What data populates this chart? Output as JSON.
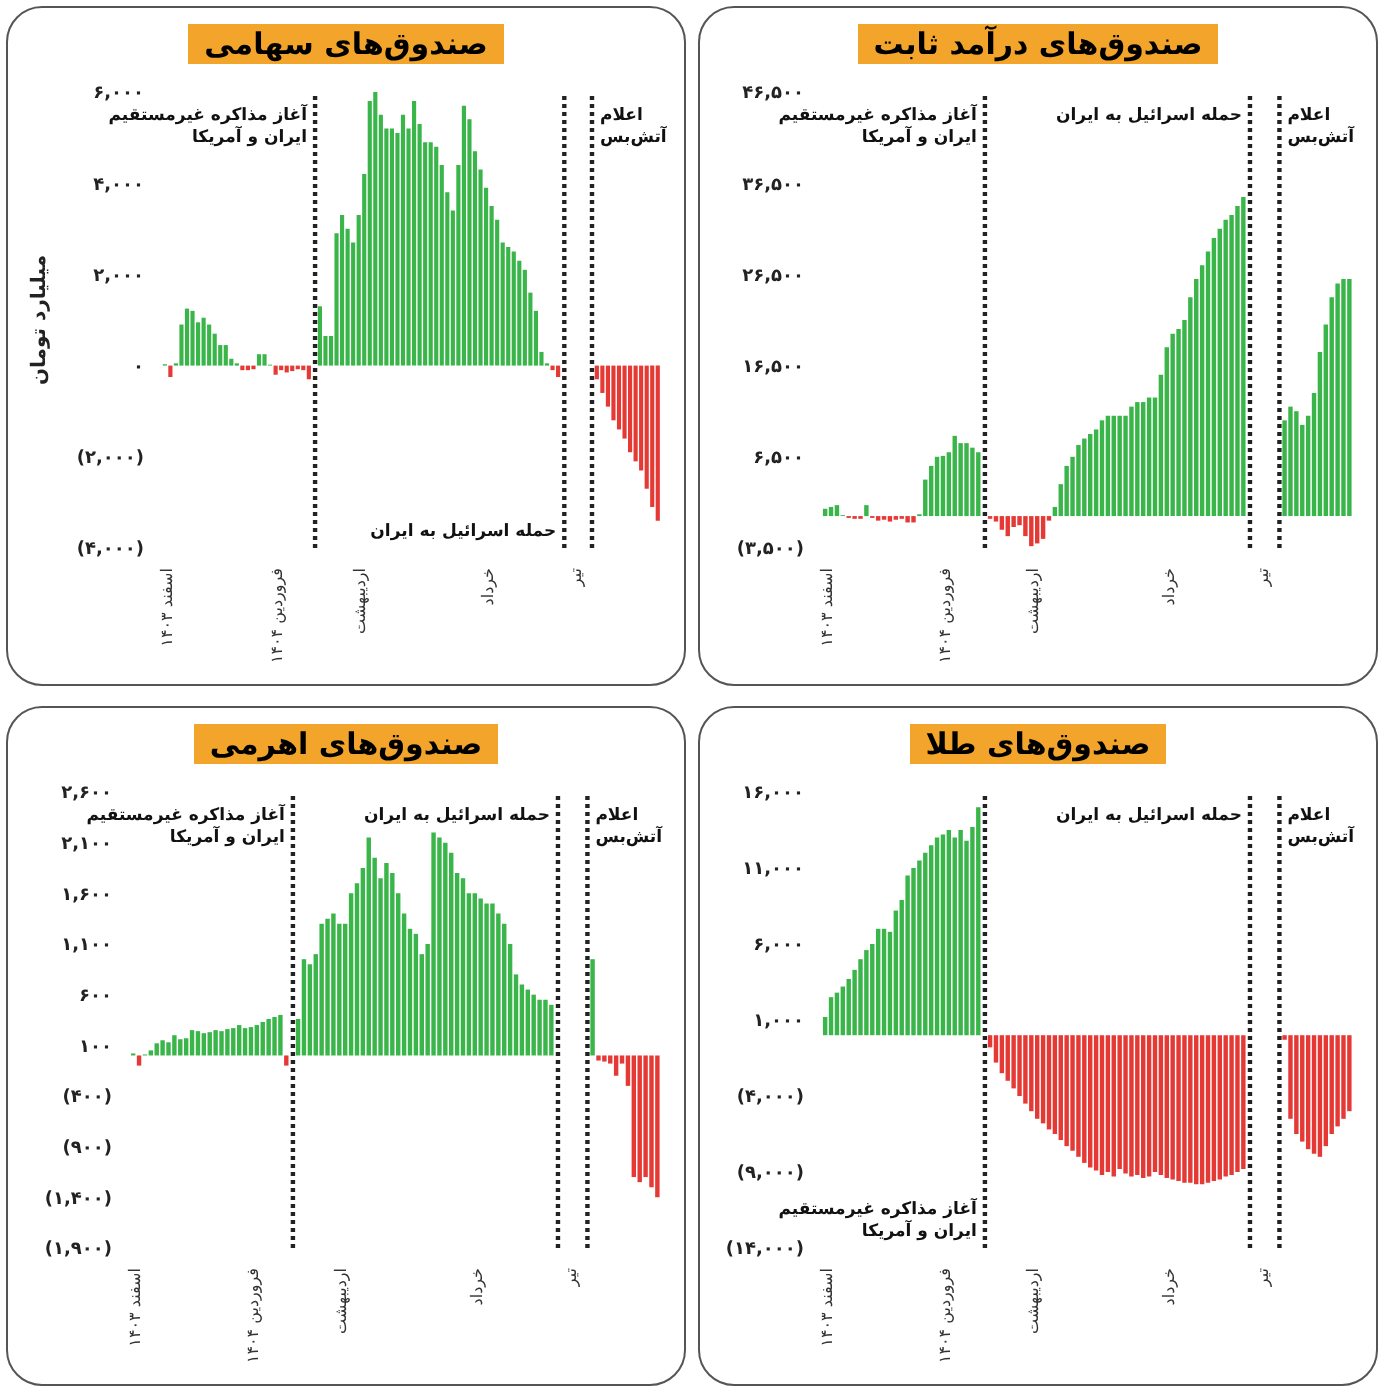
{
  "chart_data": [
    {
      "type": "bar",
      "title": "صندوق‌های سهامی",
      "ylabel": "میلیارد تومان",
      "categories": [
        "اسفند ۱۴۰۳",
        null,
        null,
        null,
        null,
        null,
        null,
        null,
        null,
        null,
        null,
        null,
        null,
        null,
        null,
        null,
        null,
        null,
        null,
        null,
        "فروردین ۱۴۰۴",
        null,
        null,
        null,
        null,
        null,
        null,
        null,
        null,
        null,
        null,
        null,
        null,
        null,
        null,
        "اردیبهشت",
        null,
        null,
        null,
        null,
        null,
        null,
        null,
        null,
        null,
        null,
        null,
        null,
        null,
        null,
        null,
        null,
        null,
        null,
        null,
        null,
        null,
        null,
        "خرداد",
        null,
        null,
        null,
        null,
        null,
        null,
        null,
        null,
        null,
        null,
        null,
        null,
        null,
        null,
        null,
        "تیر",
        null,
        null,
        null,
        null,
        null,
        null,
        null,
        null,
        null,
        null,
        null,
        null,
        null,
        null,
        null
      ],
      "values": [
        30,
        -250,
        50,
        900,
        1250,
        1200,
        950,
        1050,
        900,
        700,
        450,
        450,
        150,
        50,
        -100,
        -100,
        -80,
        250,
        250,
        20,
        -200,
        -100,
        -150,
        -120,
        -80,
        -100,
        -300,
        null,
        1300,
        650,
        650,
        2900,
        3300,
        3000,
        2700,
        3300,
        4200,
        5800,
        6000,
        5500,
        5200,
        5200,
        5100,
        5500,
        5200,
        5800,
        5300,
        4900,
        4900,
        4800,
        4400,
        3800,
        3400,
        4400,
        5700,
        5400,
        4700,
        4300,
        3900,
        3500,
        3200,
        2700,
        2600,
        2500,
        2300,
        2100,
        1600,
        1200,
        300,
        50,
        -100,
        -250,
        null,
        null,
        null,
        null,
        null,
        null,
        -300,
        -600,
        -900,
        -1200,
        -1400,
        -1600,
        -1900,
        -2100,
        -2300,
        -2700,
        -3100,
        -3400
      ],
      "colors": [
        "#3ab54a",
        "#e53935",
        "#3ab54a",
        "#3ab54a",
        "#3ab54a",
        "#3ab54a",
        "#3ab54a",
        "#3ab54a",
        "#3ab54a",
        "#3ab54a",
        "#3ab54a",
        "#3ab54a",
        "#3ab54a",
        "#3ab54a",
        "#e53935",
        "#e53935",
        "#e53935",
        "#3ab54a",
        "#3ab54a",
        "#3ab54a",
        "#e53935",
        "#e53935",
        "#e53935",
        "#e53935",
        "#e53935",
        "#e53935",
        "#e53935",
        null,
        "#3ab54a",
        "#3ab54a",
        "#3ab54a",
        "#3ab54a",
        "#3ab54a",
        "#3ab54a",
        "#3ab54a",
        "#3ab54a",
        "#3ab54a",
        "#3ab54a",
        "#3ab54a",
        "#3ab54a",
        "#3ab54a",
        "#3ab54a",
        "#3ab54a",
        "#3ab54a",
        "#3ab54a",
        "#3ab54a",
        "#3ab54a",
        "#3ab54a",
        "#3ab54a",
        "#3ab54a",
        "#3ab54a",
        "#3ab54a",
        "#3ab54a",
        "#3ab54a",
        "#3ab54a",
        "#3ab54a",
        "#3ab54a",
        "#3ab54a",
        "#3ab54a",
        "#3ab54a",
        "#3ab54a",
        "#3ab54a",
        "#3ab54a",
        "#3ab54a",
        "#3ab54a",
        "#3ab54a",
        "#3ab54a",
        "#3ab54a",
        "#3ab54a",
        "#3ab54a",
        "#e53935",
        "#e53935",
        null,
        null,
        null,
        null,
        null,
        null,
        "#e53935",
        "#e53935",
        "#e53935",
        "#e53935",
        "#e53935",
        "#e53935",
        "#e53935",
        "#e53935",
        "#e53935",
        "#e53935",
        "#e53935",
        "#e53935"
      ],
      "ylim": [
        -4000,
        6000
      ],
      "yticks": [
        {
          "value": -4000,
          "label": "(۴,۰۰۰)"
        },
        {
          "value": -2000,
          "label": "(۲,۰۰۰)"
        },
        {
          "value": 0,
          "label": "۰"
        },
        {
          "value": 2000,
          "label": "۲,۰۰۰"
        },
        {
          "value": 4000,
          "label": "۴,۰۰۰"
        },
        {
          "value": 6000,
          "label": "۶,۰۰۰"
        }
      ],
      "annotations": [
        "آغاز مذاکره غیرمستقیم ایران و آمریکا",
        "حمله اسرائیل به ایران",
        "اعلام آتش‌بس"
      ]
    },
    {
      "type": "bar",
      "title": "صندوق‌های درآمد ثابت",
      "categories": [
        "اسفند ۱۴۰۳",
        null,
        null,
        null,
        null,
        null,
        null,
        null,
        null,
        null,
        null,
        null,
        null,
        null,
        null,
        null,
        null,
        null,
        null,
        null,
        "فروردین ۱۴۰۴",
        null,
        null,
        null,
        null,
        null,
        null,
        null,
        null,
        null,
        null,
        null,
        null,
        null,
        null,
        "اردیبهشت",
        null,
        null,
        null,
        null,
        null,
        null,
        null,
        null,
        null,
        null,
        null,
        null,
        null,
        null,
        null,
        null,
        null,
        null,
        null,
        null,
        null,
        null,
        "خرداد",
        null,
        null,
        null,
        null,
        null,
        null,
        null,
        null,
        null,
        null,
        null,
        null,
        null,
        null,
        null,
        "تیر",
        null,
        null,
        null,
        null,
        null,
        null,
        null,
        null,
        null,
        null,
        null,
        null,
        null,
        null,
        null
      ],
      "values": [
        800,
        1000,
        1200,
        100,
        -200,
        -300,
        -300,
        1200,
        -200,
        -500,
        -400,
        -600,
        -400,
        -300,
        -700,
        -700,
        200,
        4000,
        5500,
        6500,
        6600,
        7000,
        8800,
        8000,
        8000,
        7500,
        7000,
        null,
        -300,
        -600,
        -1500,
        -2200,
        -1200,
        -1000,
        -2200,
        -3300,
        -3000,
        -2500,
        -500,
        1000,
        3500,
        5500,
        6500,
        7800,
        8500,
        9000,
        9500,
        10500,
        11000,
        11000,
        11000,
        11000,
        12000,
        12500,
        12500,
        13000,
        13000,
        15500,
        18500,
        20000,
        20500,
        21500,
        24000,
        26000,
        27500,
        29000,
        30500,
        31500,
        32500,
        33000,
        34000,
        35000,
        null,
        null,
        null,
        null,
        null,
        null,
        10500,
        12000,
        11500,
        10000,
        11000,
        13500,
        18000,
        21000,
        24000,
        25500,
        26000,
        26000
      ],
      "colors": [
        "#3ab54a",
        "#3ab54a",
        "#3ab54a",
        "#3ab54a",
        "#e53935",
        "#e53935",
        "#e53935",
        "#3ab54a",
        "#e53935",
        "#e53935",
        "#e53935",
        "#e53935",
        "#e53935",
        "#e53935",
        "#e53935",
        "#e53935",
        "#3ab54a",
        "#3ab54a",
        "#3ab54a",
        "#3ab54a",
        "#3ab54a",
        "#3ab54a",
        "#3ab54a",
        "#3ab54a",
        "#3ab54a",
        "#3ab54a",
        "#3ab54a",
        null,
        "#e53935",
        "#e53935",
        "#e53935",
        "#e53935",
        "#e53935",
        "#e53935",
        "#e53935",
        "#e53935",
        "#e53935",
        "#e53935",
        "#e53935",
        "#3ab54a",
        "#3ab54a",
        "#3ab54a",
        "#3ab54a",
        "#3ab54a",
        "#3ab54a",
        "#3ab54a",
        "#3ab54a",
        "#3ab54a",
        "#3ab54a",
        "#3ab54a",
        "#3ab54a",
        "#3ab54a",
        "#3ab54a",
        "#3ab54a",
        "#3ab54a",
        "#3ab54a",
        "#3ab54a",
        "#3ab54a",
        "#3ab54a",
        "#3ab54a",
        "#3ab54a",
        "#3ab54a",
        "#3ab54a",
        "#3ab54a",
        "#3ab54a",
        "#3ab54a",
        "#3ab54a",
        "#3ab54a",
        "#3ab54a",
        "#3ab54a",
        "#3ab54a",
        "#3ab54a",
        null,
        null,
        null,
        null,
        null,
        null,
        "#3ab54a",
        "#3ab54a",
        "#3ab54a",
        "#3ab54a",
        "#3ab54a",
        "#3ab54a",
        "#3ab54a",
        "#3ab54a",
        "#3ab54a",
        "#3ab54a",
        "#3ab54a",
        "#3ab54a"
      ],
      "ylim": [
        -3500,
        46500
      ],
      "yticks": [
        {
          "value": -3500,
          "label": "(۳,۵۰۰)"
        },
        {
          "value": 6500,
          "label": "۶,۵۰۰"
        },
        {
          "value": 16500,
          "label": "۱۶,۵۰۰"
        },
        {
          "value": 26500,
          "label": "۲۶,۵۰۰"
        },
        {
          "value": 36500,
          "label": "۳۶,۵۰۰"
        },
        {
          "value": 46500,
          "label": "۴۶,۵۰۰"
        }
      ],
      "annotations": [
        "آغاز مذاکره غیرمستقیم ایران و آمریکا",
        "حمله اسرائیل به ایران",
        "اعلام آتش‌بس"
      ]
    },
    {
      "type": "bar",
      "title": "صندوق‌های اهرمی",
      "categories": [
        "اسفند ۱۴۰۳",
        null,
        null,
        null,
        null,
        null,
        null,
        null,
        null,
        null,
        null,
        null,
        null,
        null,
        null,
        null,
        null,
        null,
        null,
        null,
        "فروردین ۱۴۰۴",
        null,
        null,
        null,
        null,
        null,
        null,
        null,
        null,
        null,
        null,
        null,
        null,
        null,
        null,
        "اردیبهشت",
        null,
        null,
        null,
        null,
        null,
        null,
        null,
        null,
        null,
        null,
        null,
        null,
        null,
        null,
        null,
        null,
        null,
        null,
        null,
        null,
        null,
        null,
        "خرداد",
        null,
        null,
        null,
        null,
        null,
        null,
        null,
        null,
        null,
        null,
        null,
        null,
        null,
        null,
        null,
        "تیر",
        null,
        null,
        null,
        null,
        null,
        null,
        null,
        null,
        null,
        null,
        null,
        null,
        null,
        null,
        null
      ],
      "values": [
        20,
        -100,
        10,
        50,
        120,
        150,
        130,
        200,
        160,
        170,
        250,
        240,
        220,
        230,
        250,
        240,
        260,
        270,
        300,
        270,
        280,
        300,
        330,
        360,
        380,
        400,
        -100,
        null,
        360,
        950,
        900,
        1000,
        1300,
        1350,
        1400,
        1300,
        1300,
        1600,
        1700,
        1850,
        2150,
        1950,
        1750,
        1900,
        1800,
        1600,
        1400,
        1250,
        1200,
        1000,
        1100,
        2200,
        2150,
        2100,
        2000,
        1800,
        1750,
        1600,
        1600,
        1550,
        1500,
        1500,
        1400,
        1300,
        1100,
        800,
        700,
        650,
        600,
        550,
        550,
        500,
        null,
        null,
        null,
        null,
        null,
        null,
        950,
        -50,
        -60,
        -80,
        -200,
        -80,
        -300,
        -1200,
        -1250,
        -1200,
        -1300,
        -1400
      ],
      "colors": [
        "#3ab54a",
        "#e53935",
        "#3ab54a",
        "#3ab54a",
        "#3ab54a",
        "#3ab54a",
        "#3ab54a",
        "#3ab54a",
        "#3ab54a",
        "#3ab54a",
        "#3ab54a",
        "#3ab54a",
        "#3ab54a",
        "#3ab54a",
        "#3ab54a",
        "#3ab54a",
        "#3ab54a",
        "#3ab54a",
        "#3ab54a",
        "#3ab54a",
        "#3ab54a",
        "#3ab54a",
        "#3ab54a",
        "#3ab54a",
        "#3ab54a",
        "#3ab54a",
        "#e53935",
        null,
        "#3ab54a",
        "#3ab54a",
        "#3ab54a",
        "#3ab54a",
        "#3ab54a",
        "#3ab54a",
        "#3ab54a",
        "#3ab54a",
        "#3ab54a",
        "#3ab54a",
        "#3ab54a",
        "#3ab54a",
        "#3ab54a",
        "#3ab54a",
        "#3ab54a",
        "#3ab54a",
        "#3ab54a",
        "#3ab54a",
        "#3ab54a",
        "#3ab54a",
        "#3ab54a",
        "#3ab54a",
        "#3ab54a",
        "#3ab54a",
        "#3ab54a",
        "#3ab54a",
        "#3ab54a",
        "#3ab54a",
        "#3ab54a",
        "#3ab54a",
        "#3ab54a",
        "#3ab54a",
        "#3ab54a",
        "#3ab54a",
        "#3ab54a",
        "#3ab54a",
        "#3ab54a",
        "#3ab54a",
        "#3ab54a",
        "#3ab54a",
        "#3ab54a",
        "#3ab54a",
        "#3ab54a",
        "#3ab54a",
        null,
        null,
        null,
        null,
        null,
        null,
        "#3ab54a",
        "#e53935",
        "#e53935",
        "#e53935",
        "#e53935",
        "#e53935",
        "#e53935",
        "#e53935",
        "#e53935",
        "#e53935",
        "#e53935",
        "#e53935"
      ],
      "ylim": [
        -1900,
        2600
      ],
      "yticks": [
        {
          "value": -1900,
          "label": "(۱,۹۰۰)"
        },
        {
          "value": -1400,
          "label": "(۱,۴۰۰)"
        },
        {
          "value": -900,
          "label": "(۹۰۰)"
        },
        {
          "value": -400,
          "label": "(۴۰۰)"
        },
        {
          "value": 100,
          "label": "۱۰۰"
        },
        {
          "value": 600,
          "label": "۶۰۰"
        },
        {
          "value": 1100,
          "label": "۱,۱۰۰"
        },
        {
          "value": 1600,
          "label": "۱,۶۰۰"
        },
        {
          "value": 2100,
          "label": "۲,۱۰۰"
        },
        {
          "value": 2600,
          "label": "۲,۶۰۰"
        }
      ],
      "annotations": [
        "آغاز مذاکره غیرمستقیم ایران و آمریکا",
        "حمله اسرائیل به ایران",
        "اعلام آتش‌بس"
      ]
    },
    {
      "type": "bar",
      "title": "صندوق‌های طلا",
      "categories": [
        "اسفند ۱۴۰۳",
        null,
        null,
        null,
        null,
        null,
        null,
        null,
        null,
        null,
        null,
        null,
        null,
        null,
        null,
        null,
        null,
        null,
        null,
        null,
        "فروردین ۱۴۰۴",
        null,
        null,
        null,
        null,
        null,
        null,
        null,
        null,
        null,
        null,
        null,
        null,
        null,
        null,
        "اردیبهشت",
        null,
        null,
        null,
        null,
        null,
        null,
        null,
        null,
        null,
        null,
        null,
        null,
        null,
        null,
        null,
        null,
        null,
        null,
        null,
        null,
        null,
        null,
        "خرداد",
        null,
        null,
        null,
        null,
        null,
        null,
        null,
        null,
        null,
        null,
        null,
        null,
        null,
        null,
        null,
        "تیر",
        null,
        null,
        null,
        null,
        null,
        null,
        null,
        null,
        null,
        null,
        null,
        null,
        null,
        null,
        null
      ],
      "values": [
        1200,
        2500,
        2800,
        3200,
        3700,
        4300,
        5000,
        5600,
        6000,
        7000,
        7000,
        6800,
        8200,
        8900,
        10500,
        11000,
        11500,
        12000,
        12500,
        13000,
        13200,
        13500,
        13000,
        13500,
        12800,
        13700,
        15000,
        null,
        -800,
        -1800,
        -2500,
        -3000,
        -3500,
        -4000,
        -4500,
        -5000,
        -5500,
        -5800,
        -6200,
        -6500,
        -6900,
        -7300,
        -7600,
        -8000,
        -8400,
        -8700,
        -8900,
        -9200,
        -9000,
        -9300,
        -8800,
        -9100,
        -9300,
        -9200,
        -9400,
        -9300,
        -9000,
        -9200,
        -9400,
        -9500,
        -9600,
        -9700,
        -9700,
        -9800,
        -9800,
        -9700,
        -9600,
        -9500,
        -9300,
        -9200,
        -9000,
        -8800,
        null,
        null,
        null,
        null,
        null,
        null,
        -300,
        -5500,
        -6500,
        -7000,
        -7500,
        -7800,
        -8000,
        -7300,
        -6500,
        -6000,
        -5500,
        -5000
      ],
      "colors": [
        "#3ab54a",
        "#3ab54a",
        "#3ab54a",
        "#3ab54a",
        "#3ab54a",
        "#3ab54a",
        "#3ab54a",
        "#3ab54a",
        "#3ab54a",
        "#3ab54a",
        "#3ab54a",
        "#3ab54a",
        "#3ab54a",
        "#3ab54a",
        "#3ab54a",
        "#3ab54a",
        "#3ab54a",
        "#3ab54a",
        "#3ab54a",
        "#3ab54a",
        "#3ab54a",
        "#3ab54a",
        "#3ab54a",
        "#3ab54a",
        "#3ab54a",
        "#3ab54a",
        "#3ab54a",
        null,
        "#e53935",
        "#e53935",
        "#e53935",
        "#e53935",
        "#e53935",
        "#e53935",
        "#e53935",
        "#e53935",
        "#e53935",
        "#e53935",
        "#e53935",
        "#e53935",
        "#e53935",
        "#e53935",
        "#e53935",
        "#e53935",
        "#e53935",
        "#e53935",
        "#e53935",
        "#e53935",
        "#e53935",
        "#e53935",
        "#e53935",
        "#e53935",
        "#e53935",
        "#e53935",
        "#e53935",
        "#e53935",
        "#e53935",
        "#e53935",
        "#e53935",
        "#e53935",
        "#e53935",
        "#e53935",
        "#e53935",
        "#e53935",
        "#e53935",
        "#e53935",
        "#e53935",
        "#e53935",
        "#e53935",
        "#e53935",
        "#e53935",
        "#e53935",
        null,
        null,
        null,
        null,
        null,
        null,
        "#e53935",
        "#e53935",
        "#e53935",
        "#e53935",
        "#e53935",
        "#e53935",
        "#e53935",
        "#e53935",
        "#e53935",
        "#e53935",
        "#e53935",
        "#e53935"
      ],
      "ylim": [
        -14000,
        16000
      ],
      "yticks": [
        {
          "value": -14000,
          "label": "(۱۴,۰۰۰)"
        },
        {
          "value": -9000,
          "label": "(۹,۰۰۰)"
        },
        {
          "value": -4000,
          "label": "(۴,۰۰۰)"
        },
        {
          "value": 1000,
          "label": "۱,۰۰۰"
        },
        {
          "value": 6000,
          "label": "۶,۰۰۰"
        },
        {
          "value": 11000,
          "label": "۱۱,۰۰۰"
        },
        {
          "value": 16000,
          "label": "۱۶,۰۰۰"
        }
      ],
      "annotations": [
        "آغاز مذاکره غیرمستقیم ایران و آمریکا",
        "حمله اسرائیل به ایران",
        "اعلام آتش‌بس"
      ]
    }
  ]
}
